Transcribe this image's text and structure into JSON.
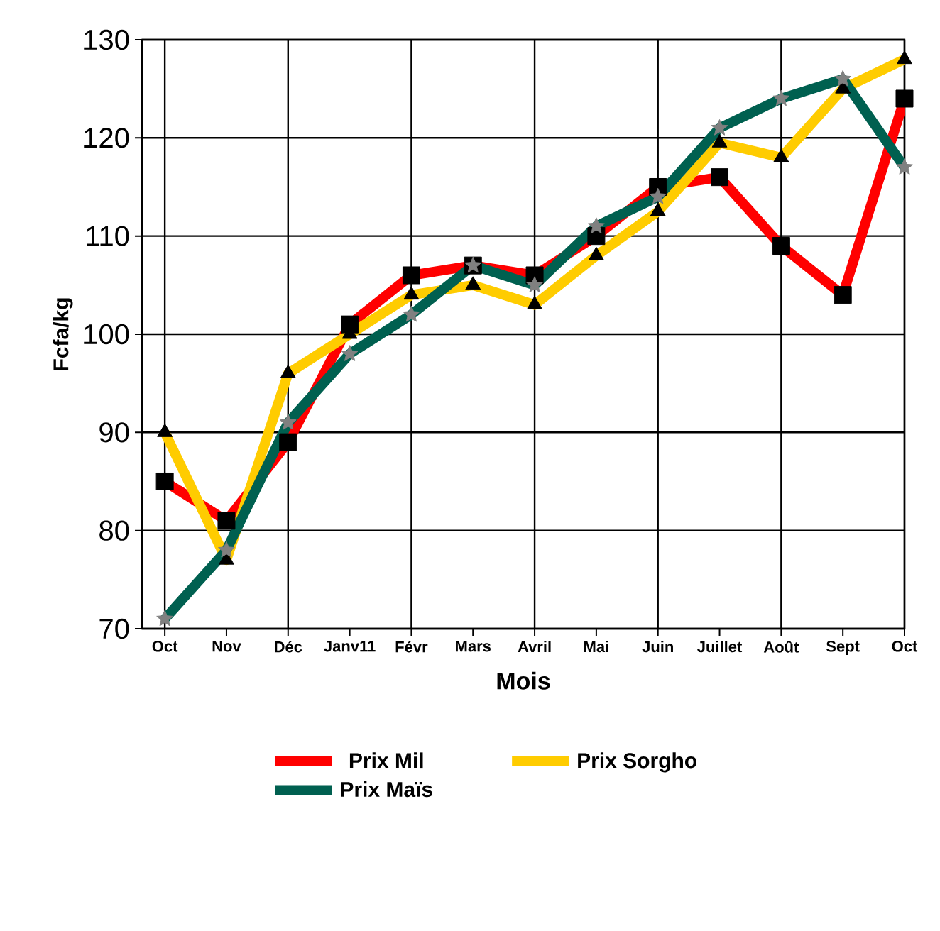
{
  "chart_data": {
    "type": "line",
    "xlabel": "Mois",
    "ylabel": "Fcfa/kg",
    "categories": [
      "Oct",
      "Nov",
      "Déc",
      "Janv11",
      "Févr",
      "Mars",
      "Avril",
      "Mai",
      "Juin",
      "Juillet",
      "Août",
      "Sept",
      "Oct"
    ],
    "series": [
      {
        "name": "Prix Mil",
        "color": "#ff0000",
        "marker": "square",
        "values": [
          85,
          81,
          89,
          101,
          106,
          107,
          106,
          110,
          115,
          116,
          109,
          104,
          124
        ]
      },
      {
        "name": "Prix Sorgho",
        "color": "#ffcc00",
        "marker": "triangle",
        "values": [
          90,
          77,
          96,
          100,
          104,
          105,
          103,
          108,
          112.5,
          119.5,
          118,
          125,
          128
        ]
      },
      {
        "name": "Prix Maïs",
        "color": "#006050",
        "marker": "star",
        "values": [
          71,
          78,
          91,
          98,
          102,
          107,
          105,
          111,
          114,
          121,
          124,
          126,
          117
        ]
      }
    ],
    "ylim": [
      70,
      130
    ],
    "yticks": [
      70,
      80,
      90,
      100,
      110,
      120,
      130
    ],
    "grid": true,
    "legend": "bottom",
    "line_style": "solid"
  }
}
